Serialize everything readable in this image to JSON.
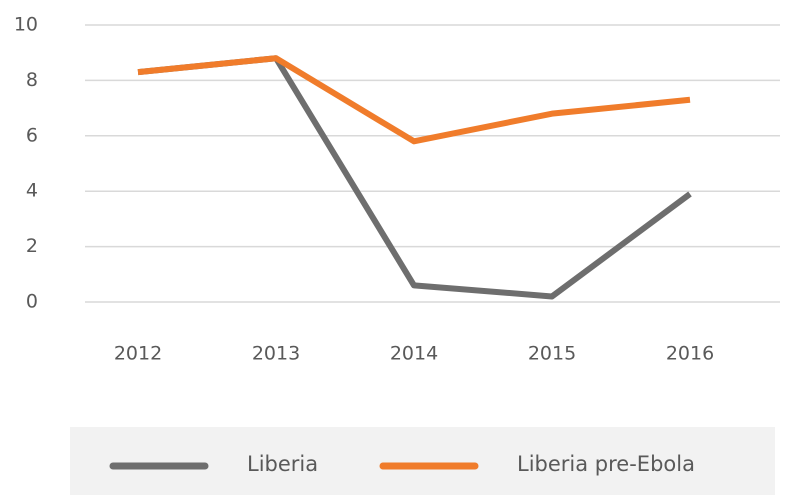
{
  "chart_data": {
    "type": "line",
    "categories": [
      "2012",
      "2013",
      "2014",
      "2015",
      "2016"
    ],
    "series": [
      {
        "name": "Liberia",
        "color": "#6e6e6e",
        "values": [
          8.3,
          8.8,
          0.6,
          0.2,
          3.9
        ]
      },
      {
        "name": "Liberia pre-Ebola",
        "color": "#f07c2b",
        "values": [
          8.3,
          8.8,
          5.8,
          6.8,
          7.3
        ]
      }
    ],
    "ylim": [
      0,
      10
    ],
    "yticks": [
      0,
      2,
      4,
      6,
      8,
      10
    ],
    "grid": true,
    "legend": "bottom"
  }
}
